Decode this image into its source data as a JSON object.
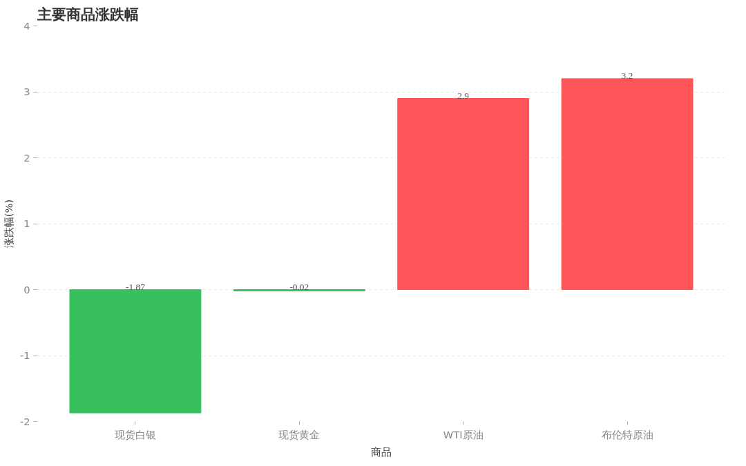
{
  "chart_data": {
    "type": "bar",
    "title": "主要商品涨跌幅",
    "xlabel": "商品",
    "ylabel": "涨跌幅(%)",
    "categories": [
      "现货白银",
      "现货黄金",
      "WTI原油",
      "布伦特原油"
    ],
    "values": [
      -1.87,
      -0.02,
      2.9,
      3.2
    ],
    "colors": [
      "#38bf5e",
      "#38bf5e",
      "#ff5558",
      "#ff5558"
    ],
    "ylim": [
      -2,
      4
    ],
    "yticks": [
      -2,
      -1,
      0,
      1,
      2,
      3,
      4
    ],
    "grid": "y",
    "data_labels": true
  }
}
